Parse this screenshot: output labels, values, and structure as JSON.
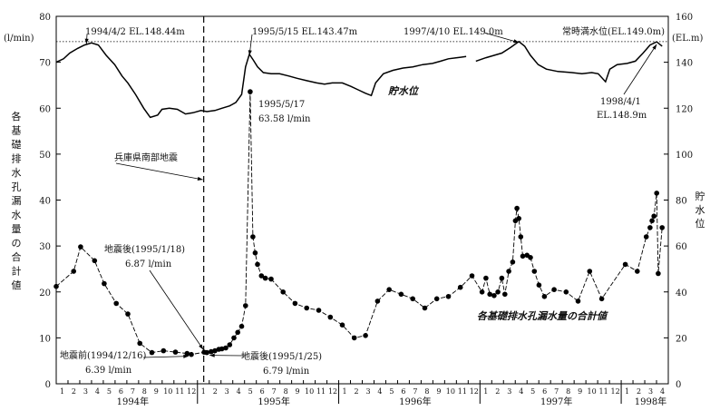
{
  "chart_data": {
    "type": "line",
    "x_range": [
      "1994-01-01",
      "1998-04-30"
    ],
    "y_left": {
      "unit": "(l/min)",
      "ylim": [
        0,
        80
      ],
      "ticks": [
        0,
        10,
        20,
        30,
        40,
        50,
        60,
        70,
        80
      ]
    },
    "y_right": {
      "unit": "(EL.m)",
      "ylim": [
        0,
        160
      ],
      "ticks": [
        0,
        20,
        40,
        60,
        80,
        100,
        120,
        140,
        160
      ]
    },
    "right_axis_title_chars": [
      "貯",
      "水",
      "位"
    ],
    "left_axis_title_chars": [
      "各",
      "基",
      "礎",
      "排",
      "水",
      "孔",
      "漏",
      "水",
      "量",
      "の",
      "合",
      "計",
      "値"
    ],
    "month_labels": [
      "1",
      "2",
      "3",
      "4",
      "5",
      "6",
      "7",
      "8",
      "9",
      "10",
      "11",
      "12",
      "1",
      "2",
      "3",
      "4",
      "5",
      "6",
      "7",
      "8",
      "9",
      "10",
      "11",
      "12",
      "1",
      "2",
      "3",
      "4",
      "5",
      "6",
      "7",
      "8",
      "9",
      "10",
      "11",
      "12",
      "1",
      "2",
      "3",
      "4",
      "5",
      "6",
      "7",
      "8",
      "9",
      "10",
      "11",
      "12",
      "1",
      "2",
      "3",
      "4"
    ],
    "years": [
      {
        "label": "1994年",
        "month": 6.5
      },
      {
        "label": "1995年",
        "month": 18.5
      },
      {
        "label": "1996年",
        "month": 30.5
      },
      {
        "label": "1997年",
        "month": 42.5
      },
      {
        "label": "1998年",
        "month": 50.5
      }
    ],
    "full_supply_level": {
      "label": "常時満水位(EL.149.0m)",
      "value": 149.0
    },
    "earthquake": {
      "label": "兵庫県南部地震",
      "date": "1995-01-17"
    },
    "series": [
      {
        "name": "貯水位",
        "axis": "right",
        "style": "line",
        "points": [
          [
            "1994-01-01",
            140.0
          ],
          [
            "1994-01-20",
            141.5
          ],
          [
            "1994-02-05",
            144.0
          ],
          [
            "1994-02-25",
            146.0
          ],
          [
            "1994-03-15",
            147.5
          ],
          [
            "1994-04-02",
            148.44
          ],
          [
            "1994-04-20",
            147.5
          ],
          [
            "1994-05-10",
            143.0
          ],
          [
            "1994-06-01",
            139.0
          ],
          [
            "1994-06-20",
            134.0
          ],
          [
            "1994-07-05",
            131.0
          ],
          [
            "1994-07-25",
            126.0
          ],
          [
            "1994-08-15",
            120.0
          ],
          [
            "1994-09-01",
            116.0
          ],
          [
            "1994-09-20",
            117.0
          ],
          [
            "1994-10-01",
            119.5
          ],
          [
            "1994-10-20",
            120.0
          ],
          [
            "1994-11-10",
            119.5
          ],
          [
            "1994-12-01",
            117.5
          ],
          [
            "1994-12-20",
            118.0
          ],
          [
            "1995-01-10",
            119.0
          ],
          [
            "1995-01-25",
            118.5
          ],
          [
            "1995-02-15",
            119.0
          ],
          [
            "1995-03-05",
            120.0
          ],
          [
            "1995-03-25",
            121.0
          ],
          [
            "1995-04-10",
            122.5
          ],
          [
            "1995-04-25",
            126.0
          ],
          [
            "1995-05-05",
            138.0
          ],
          [
            "1995-05-15",
            143.47
          ],
          [
            "1995-05-25",
            141.0
          ],
          [
            "1995-06-05",
            138.0
          ],
          [
            "1995-06-20",
            135.5
          ],
          [
            "1995-07-10",
            135.0
          ],
          [
            "1995-08-01",
            135.0
          ],
          [
            "1995-08-25",
            134.0
          ],
          [
            "1995-09-15",
            133.0
          ],
          [
            "1995-10-10",
            132.0
          ],
          [
            "1995-11-05",
            131.0
          ],
          [
            "1995-11-25",
            130.5
          ],
          [
            "1995-12-15",
            131.0
          ],
          [
            "1996-01-10",
            131.0
          ],
          [
            "1996-02-01",
            129.5
          ],
          [
            "1996-02-20",
            128.0
          ],
          [
            "1996-03-10",
            126.5
          ],
          [
            "1996-03-25",
            125.5
          ],
          [
            "1996-04-05",
            131.0
          ],
          [
            "1996-04-25",
            135.0
          ],
          [
            "1996-05-20",
            136.5
          ],
          [
            "1996-06-15",
            137.5
          ],
          [
            "1996-07-10",
            138.0
          ],
          [
            "1996-08-05",
            139.0
          ],
          [
            "1996-08-30",
            139.5
          ],
          [
            "1996-09-20",
            140.5
          ],
          [
            "1996-10-10",
            141.5
          ],
          [
            "1996-11-01",
            142.0
          ],
          [
            "1996-11-25",
            142.5
          ]
        ],
        "points_2": [
          [
            "1996-12-20",
            140.5
          ],
          [
            "1997-01-15",
            142.0
          ],
          [
            "1997-02-05",
            143.0
          ],
          [
            "1997-02-25",
            144.0
          ],
          [
            "1997-03-20",
            146.5
          ],
          [
            "1997-04-10",
            149.0
          ],
          [
            "1997-04-25",
            147.0
          ],
          [
            "1997-05-10",
            143.0
          ],
          [
            "1997-05-30",
            139.0
          ],
          [
            "1997-06-20",
            137.0
          ],
          [
            "1997-07-20",
            136.0
          ],
          [
            "1997-08-25",
            135.5
          ],
          [
            "1997-09-20",
            135.0
          ],
          [
            "1997-10-15",
            135.5
          ],
          [
            "1997-11-01",
            135.0
          ],
          [
            "1997-11-20",
            131.5
          ],
          [
            "1997-12-01",
            137.0
          ],
          [
            "1997-12-20",
            139.0
          ],
          [
            "1998-01-15",
            139.5
          ],
          [
            "1998-02-05",
            140.5
          ],
          [
            "1998-02-25",
            144.0
          ],
          [
            "1998-03-15",
            147.5
          ],
          [
            "1998-04-01",
            148.9
          ],
          [
            "1998-04-15",
            147.0
          ]
        ]
      },
      {
        "name": "各基礎排水孔漏水量の合計値",
        "axis": "left",
        "style": "line-markers",
        "points": [
          [
            "1994-01-01",
            21.2
          ],
          [
            "1994-02-15",
            24.5
          ],
          [
            "1994-03-05",
            29.8
          ],
          [
            "1994-04-10",
            26.8
          ],
          [
            "1994-05-05",
            21.8
          ],
          [
            "1994-06-05",
            17.5
          ],
          [
            "1994-07-05",
            15.2
          ],
          [
            "1994-08-05",
            8.8
          ],
          [
            "1994-09-05",
            6.8
          ],
          [
            "1994-10-05",
            7.2
          ],
          [
            "1994-11-05",
            6.9
          ],
          [
            "1994-12-05",
            6.6
          ],
          [
            "1994-12-16",
            6.39
          ],
          [
            "1995-01-18",
            6.87
          ],
          [
            "1995-01-25",
            6.79
          ],
          [
            "1995-02-05",
            7.0
          ],
          [
            "1995-02-15",
            7.2
          ],
          [
            "1995-02-25",
            7.5
          ],
          [
            "1995-03-05",
            7.6
          ],
          [
            "1995-03-15",
            7.8
          ],
          [
            "1995-03-25",
            8.5
          ],
          [
            "1995-04-05",
            10.0
          ],
          [
            "1995-04-15",
            11.2
          ],
          [
            "1995-04-25",
            12.5
          ],
          [
            "1995-05-05",
            17.0
          ],
          [
            "1995-05-17",
            63.58
          ],
          [
            "1995-05-24",
            32.0
          ],
          [
            "1995-05-30",
            28.5
          ],
          [
            "1995-06-05",
            26.0
          ],
          [
            "1995-06-15",
            23.5
          ],
          [
            "1995-06-25",
            23.0
          ],
          [
            "1995-07-10",
            22.8
          ],
          [
            "1995-08-10",
            20.0
          ],
          [
            "1995-09-10",
            17.5
          ],
          [
            "1995-10-10",
            16.5
          ],
          [
            "1995-11-10",
            16.0
          ],
          [
            "1995-12-10",
            14.5
          ],
          [
            "1996-01-10",
            12.8
          ],
          [
            "1996-02-10",
            10.0
          ],
          [
            "1996-03-10",
            10.5
          ],
          [
            "1996-04-10",
            18.0
          ],
          [
            "1996-05-10",
            20.5
          ],
          [
            "1996-06-10",
            19.5
          ],
          [
            "1996-07-10",
            18.5
          ],
          [
            "1996-08-10",
            16.5
          ],
          [
            "1996-09-10",
            18.5
          ],
          [
            "1996-10-10",
            19.0
          ],
          [
            "1996-11-10",
            21.0
          ],
          [
            "1996-12-10",
            23.5
          ],
          [
            "1997-01-05",
            20.0
          ],
          [
            "1997-01-15",
            23.0
          ],
          [
            "1997-01-25",
            19.5
          ],
          [
            "1997-02-05",
            19.2
          ],
          [
            "1997-02-15",
            20.0
          ],
          [
            "1997-02-25",
            23.0
          ],
          [
            "1997-03-05",
            19.5
          ],
          [
            "1997-03-15",
            24.5
          ],
          [
            "1997-03-25",
            26.5
          ],
          [
            "1997-04-01",
            35.5
          ],
          [
            "1997-04-05",
            38.2
          ],
          [
            "1997-04-10",
            36.0
          ],
          [
            "1997-04-15",
            32.0
          ],
          [
            "1997-04-20",
            27.8
          ],
          [
            "1997-05-01",
            28.0
          ],
          [
            "1997-05-10",
            27.5
          ],
          [
            "1997-05-20",
            24.5
          ],
          [
            "1997-06-01",
            21.5
          ],
          [
            "1997-06-15",
            19.0
          ],
          [
            "1997-07-10",
            20.5
          ],
          [
            "1997-08-10",
            20.0
          ],
          [
            "1997-09-10",
            18.0
          ],
          [
            "1997-10-10",
            24.5
          ],
          [
            "1997-11-10",
            18.5
          ],
          [
            "1998-01-10",
            26.0
          ],
          [
            "1998-02-10",
            24.5
          ],
          [
            "1998-03-05",
            32.0
          ],
          [
            "1998-03-15",
            34.0
          ],
          [
            "1998-03-20",
            35.5
          ],
          [
            "1998-03-25",
            36.5
          ],
          [
            "1998-04-01",
            41.5
          ],
          [
            "1998-04-05",
            24.0
          ],
          [
            "1998-04-15",
            34.0
          ]
        ]
      }
    ],
    "annotations": [
      {
        "id": "ws-1994",
        "text": "1994/4/2 EL.148.44m"
      },
      {
        "id": "ws-1995",
        "text": "1995/5/15 EL.143.47m"
      },
      {
        "id": "ws-1997",
        "text": "1997/4/10 EL.149.0m"
      },
      {
        "id": "ws-1998-date",
        "text": "1998/4/1"
      },
      {
        "id": "ws-1998-el",
        "text": "EL.148.9m"
      },
      {
        "id": "peak-date",
        "text": "1995/5/17"
      },
      {
        "id": "peak-value",
        "text": "63.58 l/min"
      },
      {
        "id": "pre-quake",
        "text": "地震前(1994/12/16)"
      },
      {
        "id": "pre-quake-value",
        "text": "6.39 l/min"
      },
      {
        "id": "post-quake-1",
        "text": "地震後(1995/1/18)"
      },
      {
        "id": "post-quake-1-value",
        "text": "6.87 l/min"
      },
      {
        "id": "post-quake-2",
        "text": "地震後(1995/1/25)"
      },
      {
        "id": "post-quake-2-value",
        "text": "6.79 l/min"
      }
    ],
    "series_labels": {
      "water_level": "貯水位",
      "leakage": "各基礎排水孔漏水量の合計値"
    }
  }
}
